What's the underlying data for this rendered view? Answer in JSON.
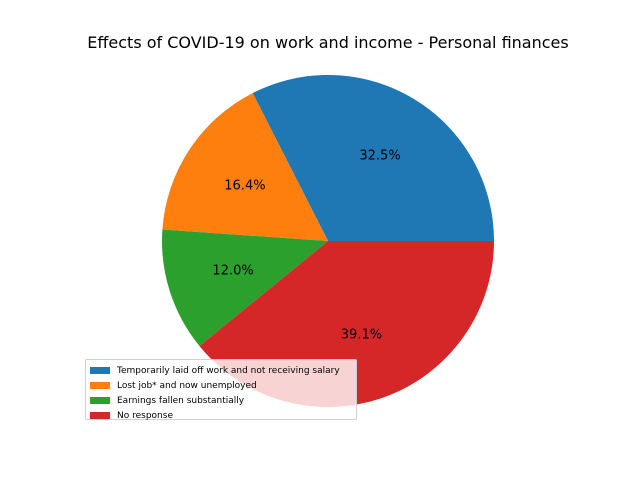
{
  "chart_data": {
    "type": "pie",
    "title": "Effects of COVID-19 on work and income - Personal finances",
    "slices": [
      {
        "label": "Temporarily laid off work and not receiving salary",
        "value": 32.5,
        "value_label": "32.5%",
        "color": "#1f77b4"
      },
      {
        "label": "Lost job* and now unemployed",
        "value": 16.4,
        "value_label": "16.4%",
        "color": "#ff7f0e"
      },
      {
        "label": "Earnings fallen substantially",
        "value": 12.0,
        "value_label": "12.0%",
        "color": "#2ca02c"
      },
      {
        "label": "No response",
        "value": 39.1,
        "value_label": "39.1%",
        "color": "#d62728"
      }
    ],
    "start_angle_deg": 0,
    "direction": "counterclockwise",
    "legend_position": "lower-left"
  }
}
